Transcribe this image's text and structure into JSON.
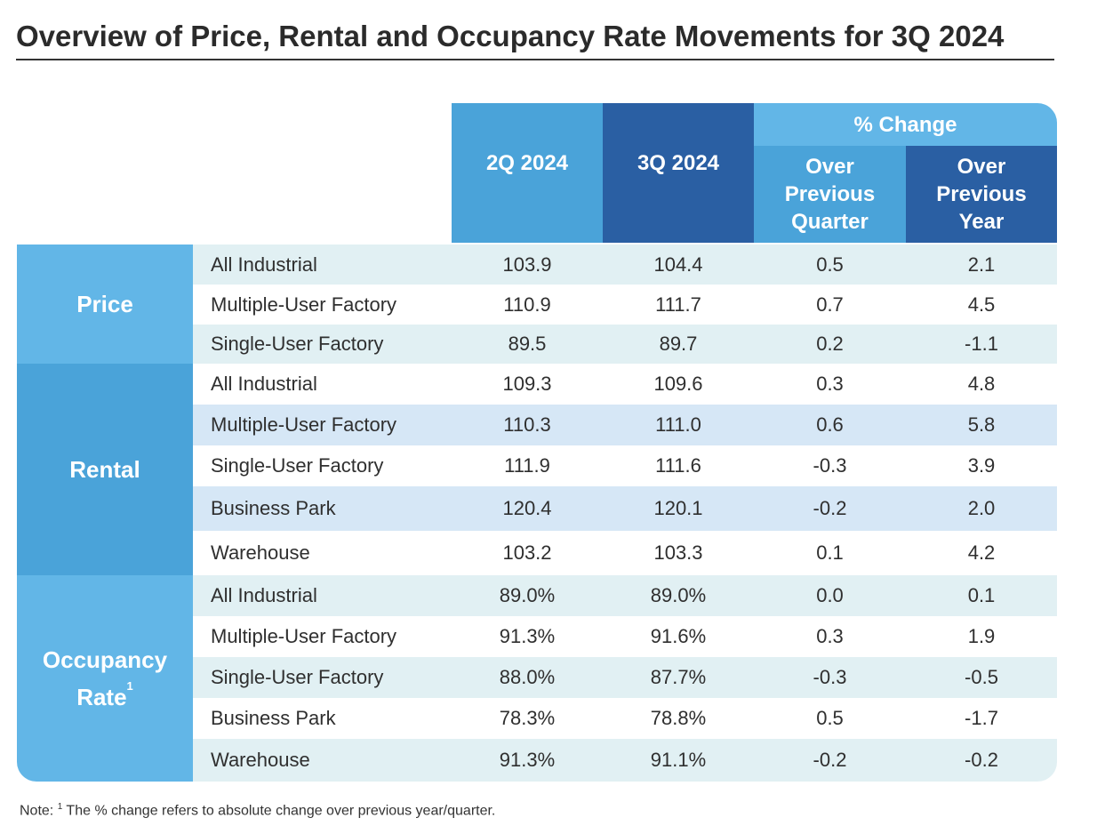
{
  "title": "Overview of Price, Rental and Occupancy Rate Movements for 3Q 2024",
  "header": {
    "col_2q": "2Q 2024",
    "col_3q": "3Q 2024",
    "pct_change": "% Change",
    "over_prev_quarter": [
      "Over",
      "Previous",
      "Quarter"
    ],
    "over_prev_year": [
      "Over",
      "Previous",
      "Year"
    ]
  },
  "groups": {
    "price": "Price",
    "rental": "Rental",
    "occupancy": [
      "Occupancy",
      "Rate"
    ],
    "occupancy_footnote_mark": "1"
  },
  "rows": [
    {
      "group": "Price",
      "category": "All Industrial",
      "q2": "103.9",
      "q3": "104.4",
      "qoq": "0.5",
      "yoy": "2.1"
    },
    {
      "group": "Price",
      "category": "Multiple-User Factory",
      "q2": "110.9",
      "q3": "111.7",
      "qoq": "0.7",
      "yoy": "4.5"
    },
    {
      "group": "Price",
      "category": "Single-User Factory",
      "q2": "89.5",
      "q3": "89.7",
      "qoq": "0.2",
      "yoy": "-1.1"
    },
    {
      "group": "Rental",
      "category": "All Industrial",
      "q2": "109.3",
      "q3": "109.6",
      "qoq": "0.3",
      "yoy": "4.8"
    },
    {
      "group": "Rental",
      "category": "Multiple-User Factory",
      "q2": "110.3",
      "q3": "111.0",
      "qoq": "0.6",
      "yoy": "5.8"
    },
    {
      "group": "Rental",
      "category": "Single-User Factory",
      "q2": "111.9",
      "q3": "111.6",
      "qoq": "-0.3",
      "yoy": "3.9"
    },
    {
      "group": "Rental",
      "category": "Business Park",
      "q2": "120.4",
      "q3": "120.1",
      "qoq": "-0.2",
      "yoy": "2.0"
    },
    {
      "group": "Rental",
      "category": "Warehouse",
      "q2": "103.2",
      "q3": "103.3",
      "qoq": "0.1",
      "yoy": "4.2"
    },
    {
      "group": "Occupancy Rate",
      "category": "All Industrial",
      "q2": "89.0%",
      "q3": "89.0%",
      "qoq": "0.0",
      "yoy": "0.1"
    },
    {
      "group": "Occupancy Rate",
      "category": "Multiple-User Factory",
      "q2": "91.3%",
      "q3": "91.6%",
      "qoq": "0.3",
      "yoy": "1.9"
    },
    {
      "group": "Occupancy Rate",
      "category": "Single-User Factory",
      "q2": "88.0%",
      "q3": "87.7%",
      "qoq": "-0.3",
      "yoy": "-0.5"
    },
    {
      "group": "Occupancy Rate",
      "category": "Business Park",
      "q2": "78.3%",
      "q3": "78.8%",
      "qoq": "0.5",
      "yoy": "-1.7"
    },
    {
      "group": "Occupancy Rate",
      "category": "Warehouse",
      "q2": "91.3%",
      "q3": "91.1%",
      "qoq": "-0.2",
      "yoy": "-0.2"
    }
  ],
  "note": {
    "prefix": "Note:",
    "mark": "1",
    "text": "The % change refers to absolute change over previous year/quarter."
  },
  "colors": {
    "light_blue": "#62b6e7",
    "mid_blue": "#4aa3d9",
    "dark_blue": "#2a5fa3",
    "row_tint_teal": "#e1f0f3",
    "row_tint_blue": "#d6e7f6",
    "row_white": "#ffffff"
  }
}
